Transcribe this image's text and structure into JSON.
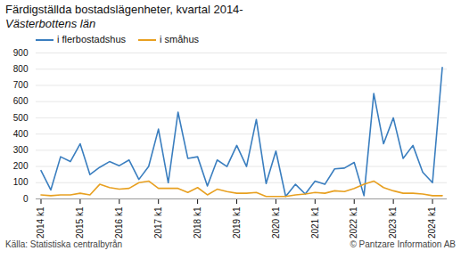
{
  "chart_data": {
    "type": "line",
    "title": "Färdigställda bostadslägenheter, kvartal 2014-",
    "subtitle": "Västerbottens län",
    "annotations": [
      "Källa: Statistiska centralbyrån",
      "© Pantzare Information AB"
    ],
    "categories": [
      "2014 k1",
      null,
      null,
      null,
      "2015 k1",
      null,
      null,
      null,
      "2016 k1",
      null,
      null,
      null,
      "2017 k1",
      null,
      null,
      null,
      "2018 k1",
      null,
      null,
      null,
      "2019 k1",
      null,
      null,
      null,
      "2020 k1",
      null,
      null,
      null,
      "2021 k1",
      null,
      null,
      null,
      "2022 k1",
      null,
      null,
      null,
      "2023 k1",
      null,
      null,
      null,
      "2024 k1",
      null
    ],
    "series": [
      {
        "name": "i flerbostadshus",
        "color": "#3A7EBF",
        "values": [
          175,
          55,
          260,
          230,
          340,
          150,
          195,
          230,
          205,
          240,
          120,
          200,
          430,
          100,
          535,
          250,
          260,
          80,
          240,
          200,
          330,
          200,
          490,
          95,
          295,
          15,
          90,
          30,
          110,
          90,
          185,
          190,
          225,
          20,
          650,
          340,
          500,
          250,
          330,
          165,
          100,
          810
        ]
      },
      {
        "name": "i småhus",
        "color": "#E8A020",
        "values": [
          25,
          20,
          25,
          25,
          35,
          25,
          90,
          70,
          60,
          65,
          100,
          110,
          65,
          65,
          65,
          40,
          70,
          25,
          60,
          45,
          35,
          35,
          40,
          15,
          15,
          15,
          25,
          30,
          40,
          35,
          50,
          45,
          65,
          90,
          110,
          70,
          50,
          35,
          35,
          30,
          20,
          20
        ]
      }
    ],
    "ylim": [
      0,
      900
    ],
    "yticks": [
      0,
      100,
      200,
      300,
      400,
      500,
      600,
      700,
      800,
      900
    ],
    "grid": true,
    "legend": "upper left"
  }
}
